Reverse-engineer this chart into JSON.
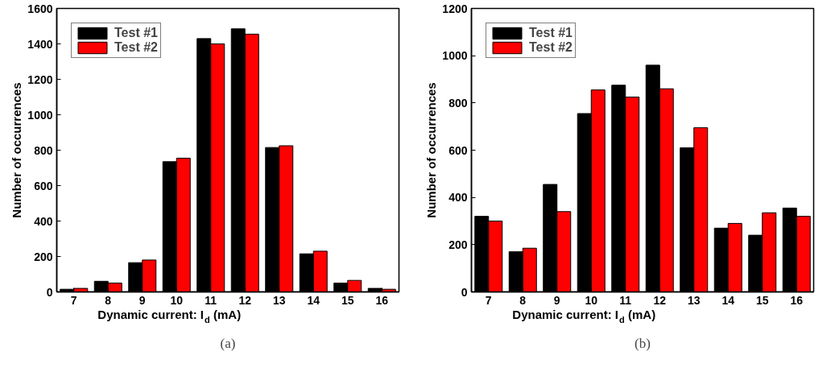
{
  "chart_data": [
    {
      "type": "bar",
      "categories": [
        "7",
        "8",
        "9",
        "10",
        "11",
        "12",
        "13",
        "14",
        "15",
        "16"
      ],
      "xlabel": "Dynamic current: I$_{d}$ (mA)",
      "ylabel": "Number of occurrences",
      "ylim": [
        0,
        1600
      ],
      "yticks": [
        0,
        200,
        400,
        600,
        800,
        1000,
        1200,
        1400,
        1600
      ],
      "legend": "top left",
      "grid": false,
      "annotations": [
        "(a)"
      ],
      "series": [
        {
          "name": "Test #1",
          "color": "#000000",
          "values": [
            15,
            60,
            165,
            735,
            1430,
            1485,
            815,
            215,
            50,
            20
          ]
        },
        {
          "name": "Test #2",
          "color": "#ff0000",
          "values": [
            20,
            50,
            180,
            755,
            1400,
            1455,
            825,
            230,
            65,
            15
          ]
        }
      ]
    },
    {
      "type": "bar",
      "categories": [
        "7",
        "8",
        "9",
        "10",
        "11",
        "12",
        "13",
        "14",
        "15",
        "16"
      ],
      "xlabel": "Dynamic current: I$_{d}$ (mA)",
      "ylabel": "Number of occurrences",
      "ylim": [
        0,
        1200
      ],
      "yticks": [
        0,
        200,
        400,
        600,
        800,
        1000,
        1200
      ],
      "legend": "top left",
      "grid": false,
      "annotations": [
        "(b)"
      ],
      "series": [
        {
          "name": "Test #1",
          "color": "#000000",
          "values": [
            320,
            170,
            455,
            755,
            875,
            960,
            610,
            270,
            240,
            355
          ]
        },
        {
          "name": "Test #2",
          "color": "#ff0000",
          "values": [
            300,
            185,
            340,
            855,
            825,
            860,
            695,
            290,
            335,
            320
          ]
        }
      ]
    }
  ]
}
